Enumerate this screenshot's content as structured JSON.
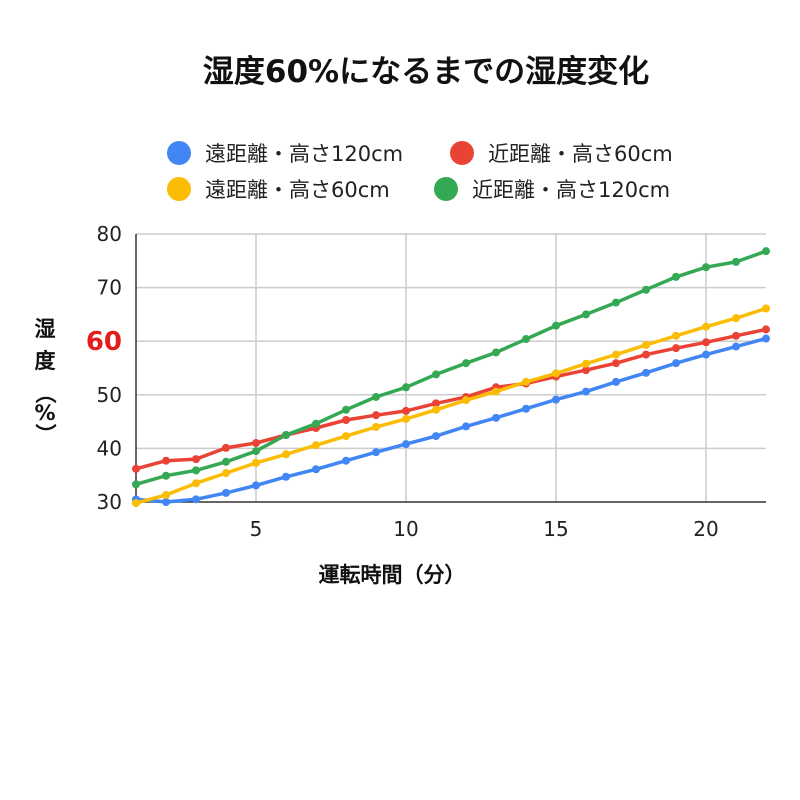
{
  "chart_data": {
    "type": "line",
    "title": "湿度60%になるまでの湿度変化",
    "xlabel": "運転時間（分）",
    "ylabel_chars": [
      "湿",
      "度",
      "（",
      "%",
      "）"
    ],
    "xlim": [
      1,
      22
    ],
    "ylim": [
      30,
      80
    ],
    "x_ticks": [
      5,
      10,
      15,
      20
    ],
    "y_ticks": [
      30,
      40,
      50,
      60,
      70,
      80
    ],
    "highlight_y_tick": 60,
    "highlight_color": "#e51c1c",
    "grid": true,
    "legend_position": "top",
    "x": [
      1,
      2,
      3,
      4,
      5,
      6,
      7,
      8,
      9,
      10,
      11,
      12,
      13,
      14,
      15,
      16,
      17,
      18,
      19,
      20,
      21,
      22
    ],
    "series": [
      {
        "name": "遠距離・高さ120cm",
        "color": "#4285f4",
        "values": [
          30.5,
          30.0,
          30.5,
          31.7,
          33.1,
          34.7,
          36.1,
          37.7,
          39.3,
          40.8,
          42.3,
          44.1,
          45.7,
          47.4,
          49.1,
          50.6,
          52.4,
          54.1,
          55.9,
          57.5,
          59.0,
          60.5
        ]
      },
      {
        "name": "近距離・高さ60cm",
        "color": "#ea4335",
        "values": [
          36.2,
          37.7,
          38.0,
          40.1,
          41.0,
          42.5,
          43.8,
          45.3,
          46.2,
          47.0,
          48.4,
          49.6,
          51.4,
          52.1,
          53.4,
          54.6,
          55.9,
          57.5,
          58.7,
          59.8,
          61.0,
          62.2
        ]
      },
      {
        "name": "遠距離・高さ60cm",
        "color": "#fbbc04",
        "values": [
          29.8,
          31.3,
          33.5,
          35.4,
          37.3,
          38.9,
          40.6,
          42.3,
          44.0,
          45.5,
          47.2,
          49.0,
          50.6,
          52.4,
          54.0,
          55.8,
          57.5,
          59.3,
          61.0,
          62.7,
          64.3,
          66.1
        ]
      },
      {
        "name": "近距離・高さ120cm",
        "color": "#34a853",
        "values": [
          33.3,
          34.9,
          35.9,
          37.5,
          39.5,
          42.5,
          44.6,
          47.2,
          49.6,
          51.4,
          53.8,
          55.9,
          57.9,
          60.4,
          62.9,
          65.0,
          67.2,
          69.6,
          72.0,
          73.8,
          74.8,
          76.8
        ]
      }
    ]
  }
}
